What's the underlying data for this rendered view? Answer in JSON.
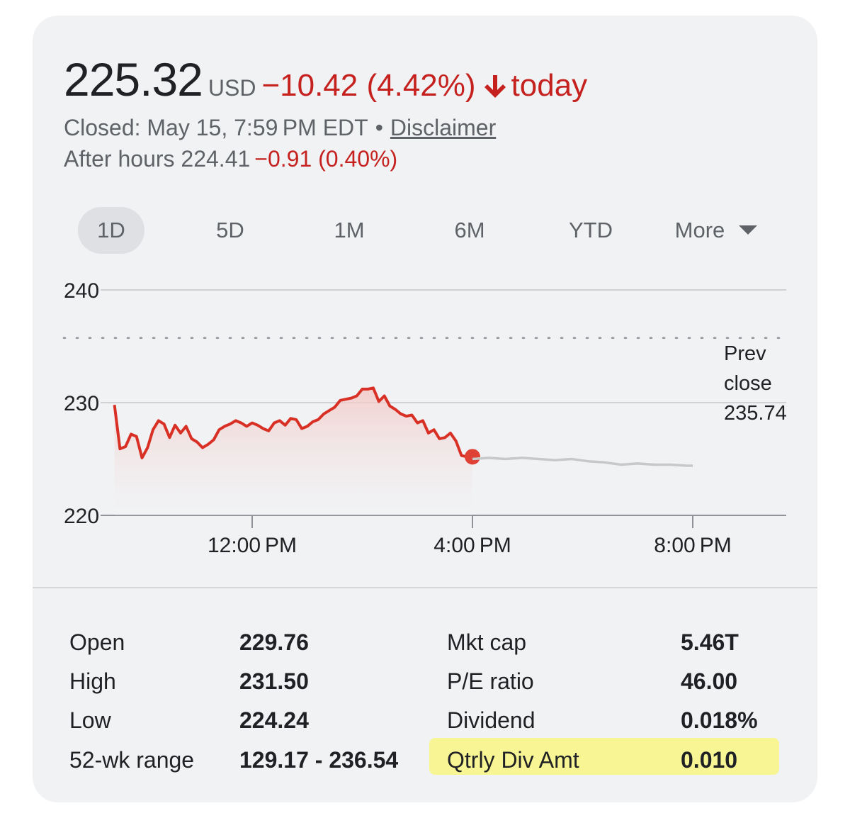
{
  "quote": {
    "price": "225.32",
    "currency": "USD",
    "change": "−10.42 (4.42%)",
    "change_period": "today",
    "status": "Closed: May 15, 7:59 PM EDT",
    "separator": "•",
    "disclaimer": "Disclaimer",
    "after_hours_label": "After hours 224.41",
    "after_hours_change": "−0.91 (0.40%)",
    "down_color": "#d93025",
    "arrow_icon": "arrow-down-icon"
  },
  "tabs": [
    {
      "label": "1D",
      "active": true
    },
    {
      "label": "5D",
      "active": false
    },
    {
      "label": "1M",
      "active": false
    },
    {
      "label": "6M",
      "active": false
    },
    {
      "label": "YTD",
      "active": false
    },
    {
      "label": "More",
      "active": false
    }
  ],
  "chart_data": {
    "type": "line",
    "y_ticks": [
      "240",
      "230",
      "220"
    ],
    "ylim": [
      220,
      240
    ],
    "x_ticks": [
      "12:00 PM",
      "4:00 PM",
      "8:00 PM"
    ],
    "prev_close": {
      "label_lines": [
        "Prev",
        "close",
        "235.74"
      ],
      "value": 235.74
    },
    "grid": true,
    "series": [
      {
        "session": "regular",
        "color": "#d93025",
        "x_hours": [
          9.5,
          9.6,
          9.7,
          9.8,
          9.9,
          10.0,
          10.1,
          10.2,
          10.3,
          10.4,
          10.5,
          10.6,
          10.7,
          10.8,
          10.9,
          11.0,
          11.1,
          11.2,
          11.3,
          11.4,
          11.5,
          11.6,
          11.7,
          11.8,
          11.9,
          12.0,
          12.1,
          12.2,
          12.3,
          12.4,
          12.5,
          12.6,
          12.7,
          12.8,
          12.9,
          13.0,
          13.1,
          13.2,
          13.3,
          13.4,
          13.5,
          13.6,
          13.7,
          13.8,
          13.9,
          14.0,
          14.1,
          14.2,
          14.3,
          14.4,
          14.5,
          14.6,
          14.7,
          14.8,
          14.9,
          15.0,
          15.1,
          15.2,
          15.3,
          15.4,
          15.5,
          15.6,
          15.7,
          15.8,
          15.9,
          16.0
        ],
        "values": [
          229.8,
          225.9,
          226.1,
          227.2,
          227.0,
          225.1,
          226.0,
          227.6,
          228.4,
          228.1,
          226.9,
          228.0,
          227.3,
          227.9,
          226.8,
          226.5,
          226.0,
          226.3,
          226.7,
          227.6,
          227.9,
          228.1,
          228.4,
          228.2,
          227.9,
          228.2,
          228.0,
          227.7,
          227.5,
          228.2,
          228.4,
          228.0,
          228.6,
          228.5,
          227.7,
          227.9,
          228.3,
          228.5,
          229.0,
          229.3,
          229.6,
          230.2,
          230.3,
          230.4,
          230.6,
          231.2,
          231.2,
          231.3,
          230.1,
          230.6,
          229.7,
          229.4,
          229.0,
          228.8,
          228.9,
          228.2,
          228.4,
          227.3,
          227.6,
          226.8,
          226.9,
          227.3,
          226.6,
          225.3,
          225.2,
          225.2
        ],
        "last_point": 225.32
      },
      {
        "session": "after-hours",
        "color": "#c8c8c8",
        "x_hours": [
          16.0,
          16.3,
          16.6,
          16.9,
          17.2,
          17.5,
          17.8,
          18.1,
          18.4,
          18.7,
          19.0,
          19.3,
          19.6,
          19.9,
          20.0
        ],
        "values": [
          225.0,
          225.1,
          225.0,
          225.1,
          225.0,
          224.9,
          225.0,
          224.8,
          224.7,
          224.5,
          224.6,
          224.5,
          224.5,
          224.4,
          224.4
        ]
      }
    ]
  },
  "stats": {
    "left": [
      {
        "label": "Open",
        "value": "229.76"
      },
      {
        "label": "High",
        "value": "231.50"
      },
      {
        "label": "Low",
        "value": "224.24"
      },
      {
        "label": "52-wk range",
        "value": "129.17 - 236.54"
      }
    ],
    "right": [
      {
        "label": "Mkt cap",
        "value": "5.46T"
      },
      {
        "label": "P/E ratio",
        "value": "46.00"
      },
      {
        "label": "Dividend",
        "value": "0.018%"
      },
      {
        "label": "Qtrly Div Amt",
        "value": "0.010"
      }
    ],
    "highlight_color": "#f8f58e"
  }
}
